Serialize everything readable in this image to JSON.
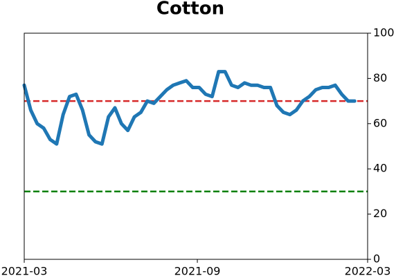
{
  "chart_data": {
    "type": "line",
    "title": "Cotton",
    "xlim": [
      "2021-03",
      "2022-03"
    ],
    "xticks": [
      "2021-03",
      "2021-09",
      "2022-03"
    ],
    "ylim": [
      0,
      100
    ],
    "yticks": [
      0,
      20,
      40,
      60,
      80,
      100
    ],
    "y_axis_side": "right",
    "series": [
      {
        "color": "#1f77b4",
        "values": [
          77,
          66,
          60,
          58,
          53,
          51,
          64,
          72,
          73,
          66,
          55,
          52,
          51,
          63,
          67,
          60,
          57,
          63,
          65,
          70,
          69,
          72,
          75,
          77,
          78,
          79,
          76,
          76,
          73,
          72,
          83,
          83,
          77,
          76,
          78,
          77,
          77,
          76,
          76,
          68,
          65,
          64,
          66,
          70,
          72,
          75,
          76,
          76,
          77,
          73,
          70,
          70,
          null
        ]
      }
    ],
    "hlines": [
      {
        "value": 70,
        "color": "#d62728"
      },
      {
        "value": 30,
        "color": "#008000"
      }
    ]
  }
}
